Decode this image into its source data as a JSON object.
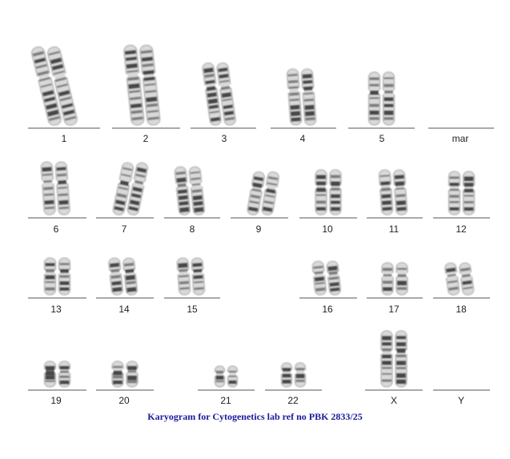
{
  "karyogram": {
    "caption": "Karyogram for Cytogenetics lab ref no PBK 2833/25",
    "colors": {
      "caption": "#1a1a9c",
      "line": "#555555",
      "chromatin": "#3a3a3a"
    },
    "slots": [
      {
        "label": "1",
        "count": 2
      },
      {
        "label": "2",
        "count": 2
      },
      {
        "label": "3",
        "count": 2
      },
      {
        "label": "4",
        "count": 2
      },
      {
        "label": "5",
        "count": 2
      },
      {
        "label": "mar",
        "count": 0
      },
      {
        "label": "6",
        "count": 2
      },
      {
        "label": "7",
        "count": 2
      },
      {
        "label": "8",
        "count": 2
      },
      {
        "label": "9",
        "count": 2
      },
      {
        "label": "10",
        "count": 2
      },
      {
        "label": "11",
        "count": 2
      },
      {
        "label": "12",
        "count": 2
      },
      {
        "label": "13",
        "count": 2
      },
      {
        "label": "14",
        "count": 2
      },
      {
        "label": "15",
        "count": 2
      },
      {
        "label": "16",
        "count": 2
      },
      {
        "label": "17",
        "count": 2
      },
      {
        "label": "18",
        "count": 2
      },
      {
        "label": "19",
        "count": 2
      },
      {
        "label": "20",
        "count": 2
      },
      {
        "label": "21",
        "count": 2
      },
      {
        "label": "22",
        "count": 2
      },
      {
        "label": "X",
        "count": 2
      },
      {
        "label": "Y",
        "count": 0
      }
    ]
  }
}
